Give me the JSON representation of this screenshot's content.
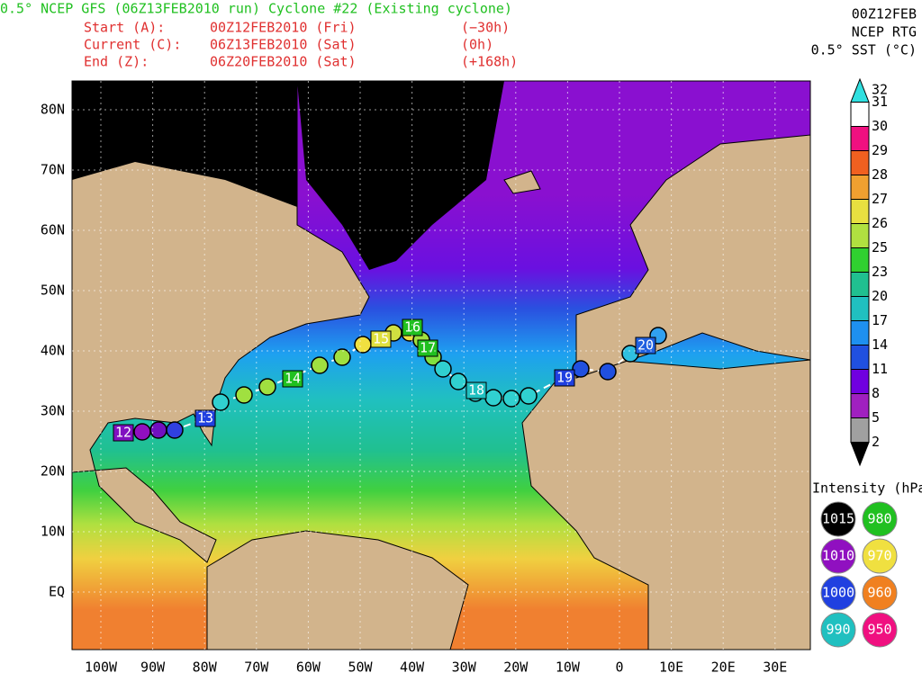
{
  "header": {
    "title": "0.5° NCEP GFS (06Z13FEB2010 run) Cyclone #22 (Existing cyclone)",
    "lines": [
      {
        "label": "Start (A):",
        "time": "00Z12FEB2010 (Fri)",
        "offset": "(−30h)"
      },
      {
        "label": "Current (C):",
        "time": "06Z13FEB2010 (Sat)",
        "offset": "(0h)"
      },
      {
        "label": "End (Z):",
        "time": "06Z20FEB2010 (Sat)",
        "offset": "(+168h)"
      }
    ]
  },
  "sst_legend": {
    "title": [
      "00Z12FEB",
      "NCEP RTG",
      "0.5° SST (°C)"
    ],
    "levels": [
      "32",
      "31",
      "30",
      "29",
      "28",
      "27",
      "26",
      "25",
      "23",
      "20",
      "17",
      "14",
      "11",
      "8",
      "5",
      "2"
    ]
  },
  "intensity_legend": {
    "title": "Intensity (hPa):",
    "items": [
      "1015",
      "980",
      "1010",
      "970",
      "1000",
      "960",
      "990",
      "950"
    ]
  },
  "map": {
    "lat_labels": [
      "80N",
      "70N",
      "60N",
      "50N",
      "40N",
      "30N",
      "20N",
      "10N",
      "EQ"
    ],
    "lon_labels": [
      "100W",
      "90W",
      "80W",
      "70W",
      "60W",
      "50W",
      "40W",
      "30W",
      "20W",
      "10W",
      "0",
      "10E",
      "20E",
      "30E"
    ],
    "day_labels": [
      "12",
      "13",
      "14",
      "15",
      "16",
      "17",
      "18",
      "19",
      "20"
    ]
  }
}
